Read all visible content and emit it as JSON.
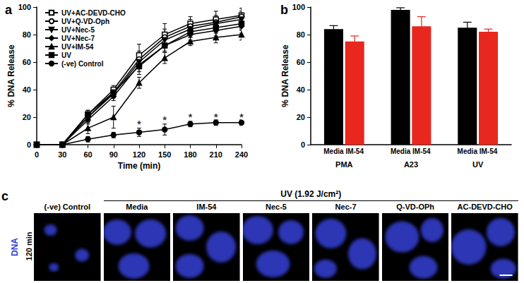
{
  "chart_data": [
    {
      "title": "a",
      "type": "line",
      "x_label": "Time (min)",
      "y_label": "% DNA Release",
      "x": [
        0,
        30,
        60,
        90,
        120,
        150,
        180,
        210,
        240
      ],
      "xlim": [
        0,
        240
      ],
      "xticks": [
        0,
        30,
        60,
        90,
        120,
        150,
        180,
        210,
        240
      ],
      "ylim": [
        0,
        100
      ],
      "yticks": [
        0,
        20,
        40,
        60,
        80,
        100
      ],
      "grid": false,
      "legend": "upper left",
      "series": [
        {
          "name": "UV+AC-DEVD-CHO",
          "color": "#000000",
          "marker": "square_open",
          "values": [
            0,
            0,
            22,
            40,
            65,
            80,
            88,
            91,
            94
          ],
          "errors": [
            0,
            0,
            3,
            3,
            8,
            8,
            5,
            6,
            7
          ]
        },
        {
          "name": "UV+Q-VD-Oph",
          "color": "#000000",
          "marker": "circle_open",
          "values": [
            0,
            0,
            20,
            38,
            62,
            78,
            86,
            89,
            93
          ],
          "errors": [
            0,
            0,
            3,
            3,
            6,
            6,
            5,
            5,
            6
          ]
        },
        {
          "name": "UV+Nec-5",
          "color": "#000000",
          "marker": "triangle_down",
          "values": [
            0,
            0,
            20,
            37,
            60,
            76,
            84,
            88,
            91
          ],
          "errors": [
            0,
            0,
            3,
            3,
            5,
            5,
            4,
            5,
            6
          ]
        },
        {
          "name": "UV+Nec-7",
          "color": "#000000",
          "marker": "diamond",
          "values": [
            0,
            0,
            18,
            35,
            58,
            72,
            80,
            83,
            86
          ],
          "errors": [
            0,
            0,
            3,
            3,
            5,
            5,
            4,
            4,
            5
          ]
        },
        {
          "name": "UV+IM-54",
          "color": "#000000",
          "marker": "triangle",
          "values": [
            0,
            0,
            12,
            20,
            45,
            63,
            75,
            78,
            80
          ],
          "errors": [
            0,
            0,
            4,
            8,
            4,
            4,
            3,
            4,
            4
          ]
        },
        {
          "name": "UV",
          "color": "#000000",
          "marker": "square",
          "values": [
            0,
            0,
            22,
            38,
            57,
            72,
            82,
            85,
            88
          ],
          "errors": [
            0,
            0,
            3,
            3,
            6,
            4,
            4,
            4,
            5
          ]
        },
        {
          "name": "(-ve) Control",
          "color": "#000000",
          "marker": "circle",
          "values": [
            0,
            0,
            4,
            7,
            9,
            11,
            15,
            16,
            16
          ],
          "errors": [
            0,
            0,
            2,
            2,
            3,
            4,
            2,
            2,
            2
          ]
        }
      ],
      "annotations": [
        {
          "x": 120,
          "y": 15,
          "text": "*"
        },
        {
          "x": 150,
          "y": 18,
          "text": "*"
        },
        {
          "x": 180,
          "y": 20,
          "text": "*"
        },
        {
          "x": 210,
          "y": 20,
          "text": "*"
        },
        {
          "x": 240,
          "y": 20,
          "text": "*"
        }
      ]
    },
    {
      "title": "b",
      "type": "bar",
      "y_label": "% DNA Release",
      "categories": [
        "PMA",
        "A23",
        "UV"
      ],
      "ylim": [
        0,
        100
      ],
      "yticks": [
        0,
        20,
        40,
        60,
        80,
        100
      ],
      "grid": false,
      "series": [
        {
          "name": "Media",
          "color": "#000000",
          "values": [
            84,
            98,
            85
          ],
          "errors": [
            2.5,
            1.5,
            4
          ]
        },
        {
          "name": "IM-54",
          "color": "#e8271f",
          "values": [
            75,
            86,
            82
          ],
          "errors": [
            4,
            7,
            2
          ]
        }
      ]
    }
  ],
  "panel_c": {
    "label": "c",
    "group_label": "UV (1.92 J/cm²)",
    "columns": [
      "(-ve) Control",
      "Media",
      "IM-54",
      "Nec-5",
      "Nec-7",
      "Q-VD-OPh",
      "AC-DEVD-CHO"
    ],
    "stain": "DNA",
    "time": "120 min"
  }
}
